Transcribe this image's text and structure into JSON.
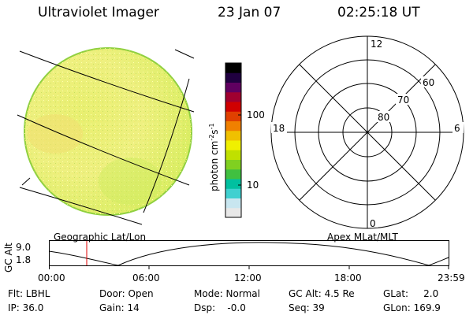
{
  "header": {
    "instrument": "Ultraviolet Imager",
    "date": "23 Jan 07",
    "time": "02:25:18 UT"
  },
  "colorbar": {
    "unit_label": "photon cm",
    "unit_sup1": "-2",
    "unit_mid": "s",
    "unit_sup2": "-1",
    "tick_100": "100",
    "tick_10": "10",
    "colors": [
      "#e8e8e8",
      "#c8e6f0",
      "#40d0d0",
      "#00c0a0",
      "#40c040",
      "#80d020",
      "#c0e000",
      "#f0f000",
      "#f0c000",
      "#f08000",
      "#e04000",
      "#d00000",
      "#a00030",
      "#600060",
      "#200040",
      "#000000"
    ]
  },
  "polar": {
    "label_12": "12",
    "label_18": "18",
    "label_6": "6",
    "label_0": "0",
    "label_60": "60",
    "label_70": "70",
    "label_80": "80"
  },
  "timeline": {
    "left_title": "Geographic Lat/Lon",
    "right_title": "Apex MLat/MLT",
    "y_axis_label": "GC Alt",
    "y_ticks": [
      "9.0",
      "1.8"
    ],
    "x_ticks": [
      "00:00",
      "06:00",
      "12:00",
      "18:00",
      "23:59"
    ],
    "current_time_marker": "02:25"
  },
  "meta": {
    "filter": "Flt: LBHL",
    "ip": "IP: 36.0",
    "door": "Door: Open",
    "gain": "Gain: 14",
    "mode": "Mode: Normal",
    "dsp": "Dsp:    -0.0",
    "gcalt": "GC Alt: 4.5 Re",
    "seq": "Seq: 39",
    "glat": "GLat:     2.0",
    "glon": "GLon: 169.9"
  }
}
